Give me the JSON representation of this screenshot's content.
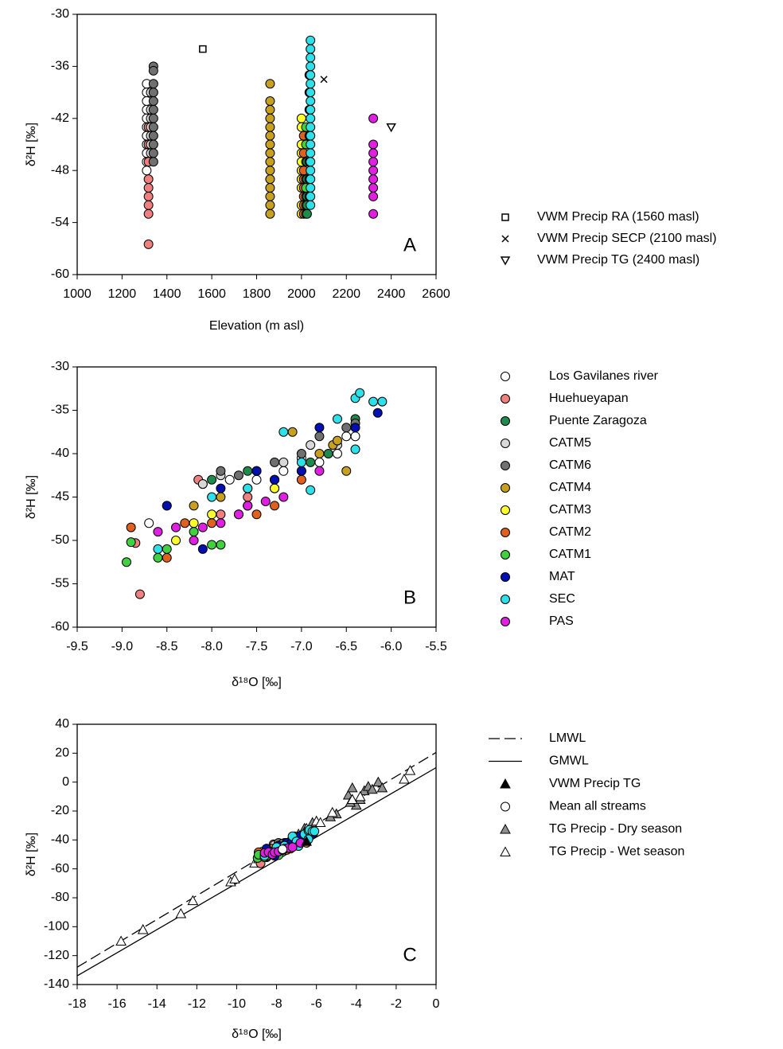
{
  "chart_data": [
    {
      "type": "scatter",
      "panel_label": "A",
      "x_label": "Elevation (m asl)",
      "y_label": "δ²H [‰]",
      "xlim": [
        1000,
        2600
      ],
      "ylim": [
        -60,
        -30
      ],
      "xticks": [
        1000,
        1200,
        1400,
        1600,
        1800,
        2000,
        2200,
        2400,
        2600
      ],
      "yticks": [
        -60,
        -54,
        -48,
        -42,
        -36,
        -30
      ],
      "series": [
        {
          "color": "#ffffff",
          "marker": "circle",
          "elevation": 1310,
          "values": [
            -38,
            -39,
            -40,
            -41,
            -42,
            -43,
            -44,
            -45,
            -46,
            -47,
            -48
          ]
        },
        {
          "color": "#f08080",
          "marker": "circle",
          "elevation": 1318,
          "values": [
            -43,
            -45,
            -47,
            -49,
            -50,
            -51,
            -52,
            -53,
            -56.5
          ]
        },
        {
          "color": "#d8d8d8",
          "marker": "circle",
          "elevation": 1328,
          "values": [
            -39,
            -41,
            -42,
            -43,
            -44,
            -45,
            -46
          ]
        },
        {
          "color": "#707070",
          "marker": "circle",
          "elevation": 1340,
          "values": [
            -36,
            -36.5,
            -38,
            -39,
            -40,
            -41,
            -42,
            -43,
            -44,
            -45,
            -46,
            -47
          ]
        },
        {
          "color": "#c8a020",
          "marker": "circle",
          "elevation": 1860,
          "values": [
            -38,
            -40,
            -41,
            -42,
            -43,
            -44,
            -45,
            -46,
            -47,
            -48,
            -49,
            -50,
            -51,
            -52,
            -53
          ]
        },
        {
          "color": "#ffff30",
          "marker": "circle",
          "elevation": 2000,
          "values": [
            -42,
            -43,
            -45,
            -46,
            -47,
            -48,
            -49,
            -50,
            -52,
            -53
          ]
        },
        {
          "color": "#e06020",
          "marker": "circle",
          "elevation": 2010,
          "values": [
            -44,
            -46,
            -48,
            -49,
            -50,
            -51,
            -52,
            -53
          ]
        },
        {
          "color": "#40d040",
          "marker": "circle",
          "elevation": 2020,
          "values": [
            -43,
            -45,
            -47,
            -49,
            -50,
            -51,
            -52,
            -53
          ]
        },
        {
          "color": "#1e8a4c",
          "marker": "circle",
          "elevation": 2025,
          "values": [
            -47,
            -49,
            -51,
            -52,
            -53
          ]
        },
        {
          "color": "#0010b0",
          "marker": "circle",
          "elevation": 2035,
          "values": [
            -37,
            -39,
            -41,
            -44,
            -47,
            -49,
            -51
          ]
        },
        {
          "color": "#30e0e8",
          "marker": "circle",
          "elevation": 2040,
          "values": [
            -33,
            -34,
            -35,
            -36,
            -37,
            -38,
            -39,
            -40,
            -41,
            -42,
            -43,
            -44,
            -45,
            -46,
            -47,
            -48,
            -49,
            -50,
            -51,
            -52
          ]
        },
        {
          "color": "#e020e0",
          "marker": "circle",
          "elevation": 2320,
          "values": [
            -42,
            -45,
            -46,
            -47,
            -48,
            -49,
            -50,
            -51,
            -53
          ]
        },
        {
          "name": "VWM Precip RA (1560 masl)",
          "color": "#ffffff",
          "marker": "square",
          "elevation": 1560,
          "values": [
            -34
          ]
        },
        {
          "name": "VWM Precip SECP (2100 masl)",
          "color": "#000000",
          "marker": "cross",
          "elevation": 2100,
          "values": [
            -37.5
          ]
        },
        {
          "name": "VWM Precip TG (2400 masl)",
          "color": "#ffffff",
          "marker": "triangle-down",
          "elevation": 2400,
          "values": [
            -43
          ]
        }
      ]
    },
    {
      "type": "scatter",
      "panel_label": "B",
      "x_label": "δ¹⁸O [‰]",
      "y_label": "δ²H [‰]",
      "xlim": [
        -9.5,
        -5.5
      ],
      "ylim": [
        -60,
        -30
      ],
      "xticks": [
        -9.5,
        {
          "value": -9,
          "label": "-9.0"
        },
        -8.5,
        {
          "value": -8,
          "label": "-8.0"
        },
        -7.5,
        {
          "value": -7,
          "label": "-7.0"
        },
        -6.5,
        {
          "value": -6,
          "label": "-6.0"
        },
        -5.5
      ],
      "yticks": [
        -60,
        -55,
        -50,
        -45,
        -40,
        -35,
        -30
      ],
      "series": [
        {
          "name": "Los Gavilanes river",
          "color": "#ffffff",
          "marker": "circle",
          "x": [
            -8.7,
            -8.1,
            -7.8,
            -7.5,
            -7.2,
            -7.0,
            -6.8,
            -6.6,
            -6.5,
            -6.4
          ],
          "values": [
            -48,
            -43.5,
            -43,
            -43,
            -42,
            -40.5,
            -41,
            -40,
            -38,
            -38
          ]
        },
        {
          "name": "Huehueyapan",
          "color": "#f08080",
          "marker": "circle",
          "x": [
            -8.8,
            -8.85,
            -8.15,
            -8.5,
            -7.9,
            -7.6,
            -7.3
          ],
          "values": [
            -56.2,
            -50.3,
            -43,
            -46,
            -47,
            -45,
            -43
          ]
        },
        {
          "name": "Puente Zaragoza",
          "color": "#1e8a4c",
          "marker": "circle",
          "x": [
            -8.0,
            -7.6,
            -7.3,
            -6.9,
            -6.7,
            -6.4
          ],
          "values": [
            -43,
            -42,
            -44,
            -41,
            -40,
            -36
          ]
        },
        {
          "name": "CATM5",
          "color": "#d8d8d8",
          "marker": "circle",
          "x": [
            -8.1,
            -7.9,
            -7.5,
            -7.2,
            -6.9,
            -6.6
          ],
          "values": [
            -43.5,
            -42.5,
            -42,
            -41,
            -39,
            -39
          ]
        },
        {
          "name": "CATM6",
          "color": "#707070",
          "marker": "circle",
          "x": [
            -7.9,
            -7.7,
            -7.5,
            -7.3,
            -7.0,
            -6.8,
            -6.5,
            -6.4
          ],
          "values": [
            -42,
            -42.5,
            -42,
            -41,
            -40,
            -38,
            -37,
            -36.5
          ]
        },
        {
          "name": "CATM4",
          "color": "#c8a020",
          "marker": "circle",
          "x": [
            -8.2,
            -7.9,
            -7.6,
            -7.3,
            -7.1,
            -6.8,
            -6.65,
            -6.5,
            -6.6
          ],
          "values": [
            -46,
            -45,
            -44,
            -43,
            -37.5,
            -40,
            -39,
            -42,
            -38.5
          ]
        },
        {
          "name": "CATM3",
          "color": "#ffff30",
          "marker": "circle",
          "x": [
            -8.4,
            -8.2,
            -8.0,
            -7.6,
            -7.3,
            -7.0
          ],
          "values": [
            -50,
            -48,
            -47,
            -46,
            -44,
            -42
          ]
        },
        {
          "name": "CATM2",
          "color": "#e06020",
          "marker": "circle",
          "x": [
            -8.9,
            -8.5,
            -8.3,
            -8.0,
            -7.7,
            -7.5,
            -7.3,
            -7.0
          ],
          "values": [
            -48.5,
            -52,
            -48,
            -48,
            -47,
            -47,
            -46,
            -43
          ]
        },
        {
          "name": "CATM1",
          "color": "#40d040",
          "marker": "circle",
          "x": [
            -8.95,
            -8.9,
            -8.6,
            -8.5,
            -8.2,
            -8.0,
            -7.9,
            -7.6
          ],
          "values": [
            -52.5,
            -50.2,
            -52,
            -51,
            -49,
            -50.5,
            -50.5,
            -46
          ]
        },
        {
          "name": "MAT",
          "color": "#0010b0",
          "marker": "circle",
          "x": [
            -8.5,
            -8.1,
            -7.9,
            -7.5,
            -7.3,
            -7.0,
            -6.8,
            -6.4,
            -6.15
          ],
          "values": [
            -46,
            -51,
            -44,
            -42,
            -43,
            -42,
            -37,
            -37,
            -35.3
          ]
        },
        {
          "name": "SEC",
          "color": "#30e0e8",
          "marker": "circle",
          "x": [
            -8.6,
            -8.0,
            -7.6,
            -7.2,
            -7.0,
            -6.9,
            -6.6,
            -6.4,
            -6.35,
            -6.2,
            -6.1,
            -6.4
          ],
          "values": [
            -51,
            -45,
            -44,
            -37.5,
            -41,
            -44.2,
            -36,
            -33.6,
            -33,
            -34,
            -34,
            -39.5
          ]
        },
        {
          "name": "PAS",
          "color": "#e020e0",
          "marker": "circle",
          "x": [
            -8.6,
            -8.4,
            -8.2,
            -8.1,
            -7.9,
            -7.7,
            -7.6,
            -7.4,
            -7.2,
            -6.8
          ],
          "values": [
            -49,
            -48.5,
            -50,
            -48.5,
            -48,
            -47,
            -46,
            -45.5,
            -45,
            -42
          ]
        }
      ]
    },
    {
      "type": "scatter",
      "panel_label": "C",
      "x_label": "δ¹⁸O [‰]",
      "y_label": "δ²H [‰]",
      "xlim": [
        -18,
        0
      ],
      "ylim": [
        -140,
        40
      ],
      "xticks": [
        -18,
        -16,
        -14,
        -12,
        -10,
        -8,
        -6,
        -4,
        -2,
        0
      ],
      "yticks": [
        -140,
        -120,
        -100,
        -80,
        -60,
        -40,
        -20,
        0,
        20,
        40
      ],
      "series": [
        {
          "name": "LMWL",
          "color": "#000000",
          "marker": "dashed-line",
          "x": [
            -18,
            0
          ],
          "values": [
            -128,
            20.5
          ]
        },
        {
          "name": "GMWL",
          "color": "#000000",
          "marker": "line",
          "x": [
            -18,
            0
          ],
          "values": [
            -134,
            10
          ]
        },
        {
          "name": "VWM Precip TG",
          "color": "#000000",
          "marker": "triangle",
          "x": [
            -6.5
          ],
          "values": [
            -41
          ]
        },
        {
          "name": "Mean all streams",
          "color": "#ffffff",
          "marker": "circle",
          "x": [
            -7.7
          ],
          "values": [
            -46.5
          ]
        },
        {
          "name": "TG Precip - Dry season",
          "color": "#909090",
          "marker": "triangle",
          "x": [
            -4.4,
            -4.2,
            -4.0,
            -3.6,
            -3.4,
            -3.2,
            -2.9,
            -2.7,
            -5.0,
            -5.3,
            -6.2,
            -6.6,
            -4.3,
            -3.8
          ],
          "values": [
            -9,
            -4,
            -16,
            -6,
            -3,
            -5,
            0,
            -4,
            -22,
            -24,
            -28,
            -32,
            -14,
            -12
          ]
        },
        {
          "name": "TG Precip - Wet season",
          "color": "#ffffff",
          "marker": "triangle",
          "x": [
            -15.8,
            -14.7,
            -12.8,
            -12.2,
            -10.3,
            -10.1,
            -9.1,
            -8.9,
            -7.2,
            -6.9,
            -6.5,
            -6.0,
            -5.8,
            -5.2,
            -4.2,
            -3.8,
            -1.6,
            -1.3
          ],
          "values": [
            -110,
            -102,
            -91,
            -82,
            -69,
            -67,
            -56,
            -53,
            -40,
            -36,
            -32,
            -27,
            -28,
            -21,
            -12,
            -10,
            2,
            8
          ]
        }
      ]
    }
  ]
}
